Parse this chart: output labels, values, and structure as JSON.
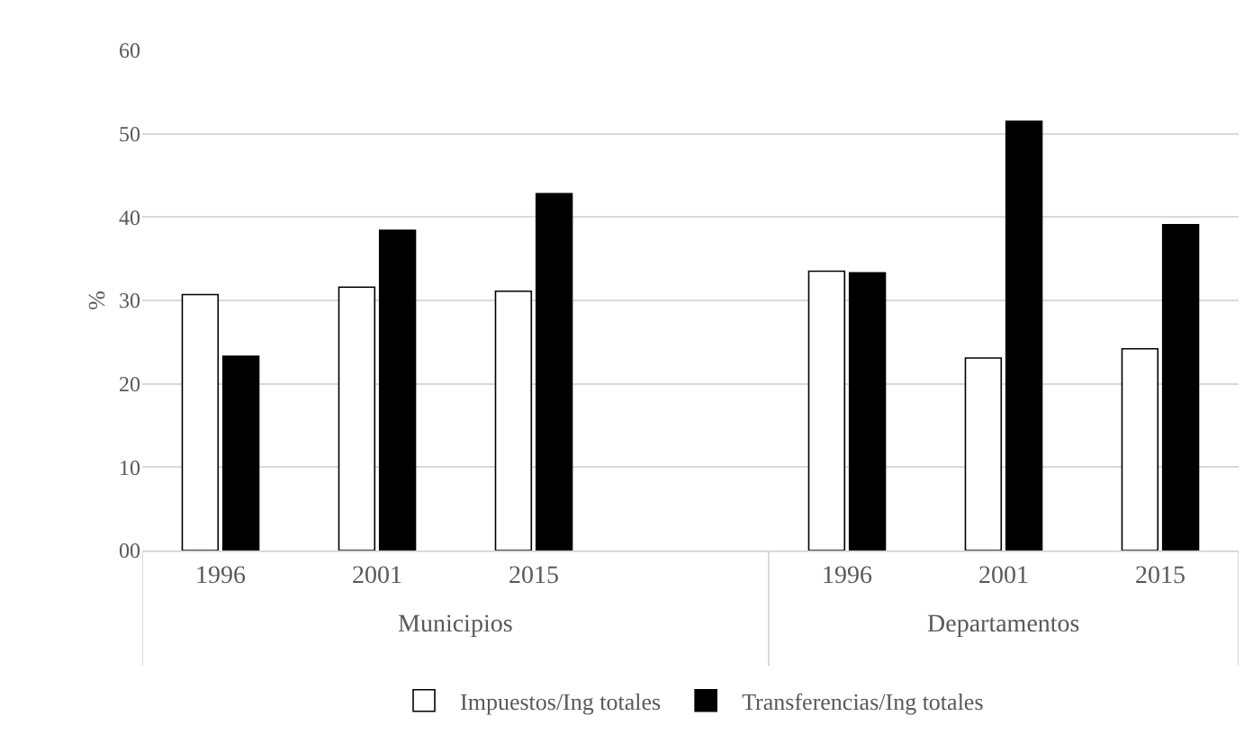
{
  "chart_data": {
    "type": "bar",
    "ylabel": "%",
    "categories": [
      "1996",
      "2001",
      "2015",
      null,
      "1996",
      "2001",
      "2015"
    ],
    "series": [
      {
        "name": "Impuestos/Ing totales",
        "color": "#ffffff",
        "values": [
          30.7,
          31.6,
          31.1,
          null,
          33.5,
          23.1,
          24.2
        ]
      },
      {
        "name": "Transferencias/Ing totales",
        "color": "#000000",
        "values": [
          23.3,
          38.4,
          42.8,
          null,
          33.3,
          51.5,
          39.1
        ]
      }
    ],
    "annotations": [
      "Municipios",
      "Departamentos"
    ],
    "ylim": [
      0,
      60
    ],
    "yticks": [
      {
        "value": 0,
        "label": "00"
      },
      10,
      20,
      30,
      40,
      50,
      60
    ],
    "grid": "y",
    "legend": "bottom"
  }
}
